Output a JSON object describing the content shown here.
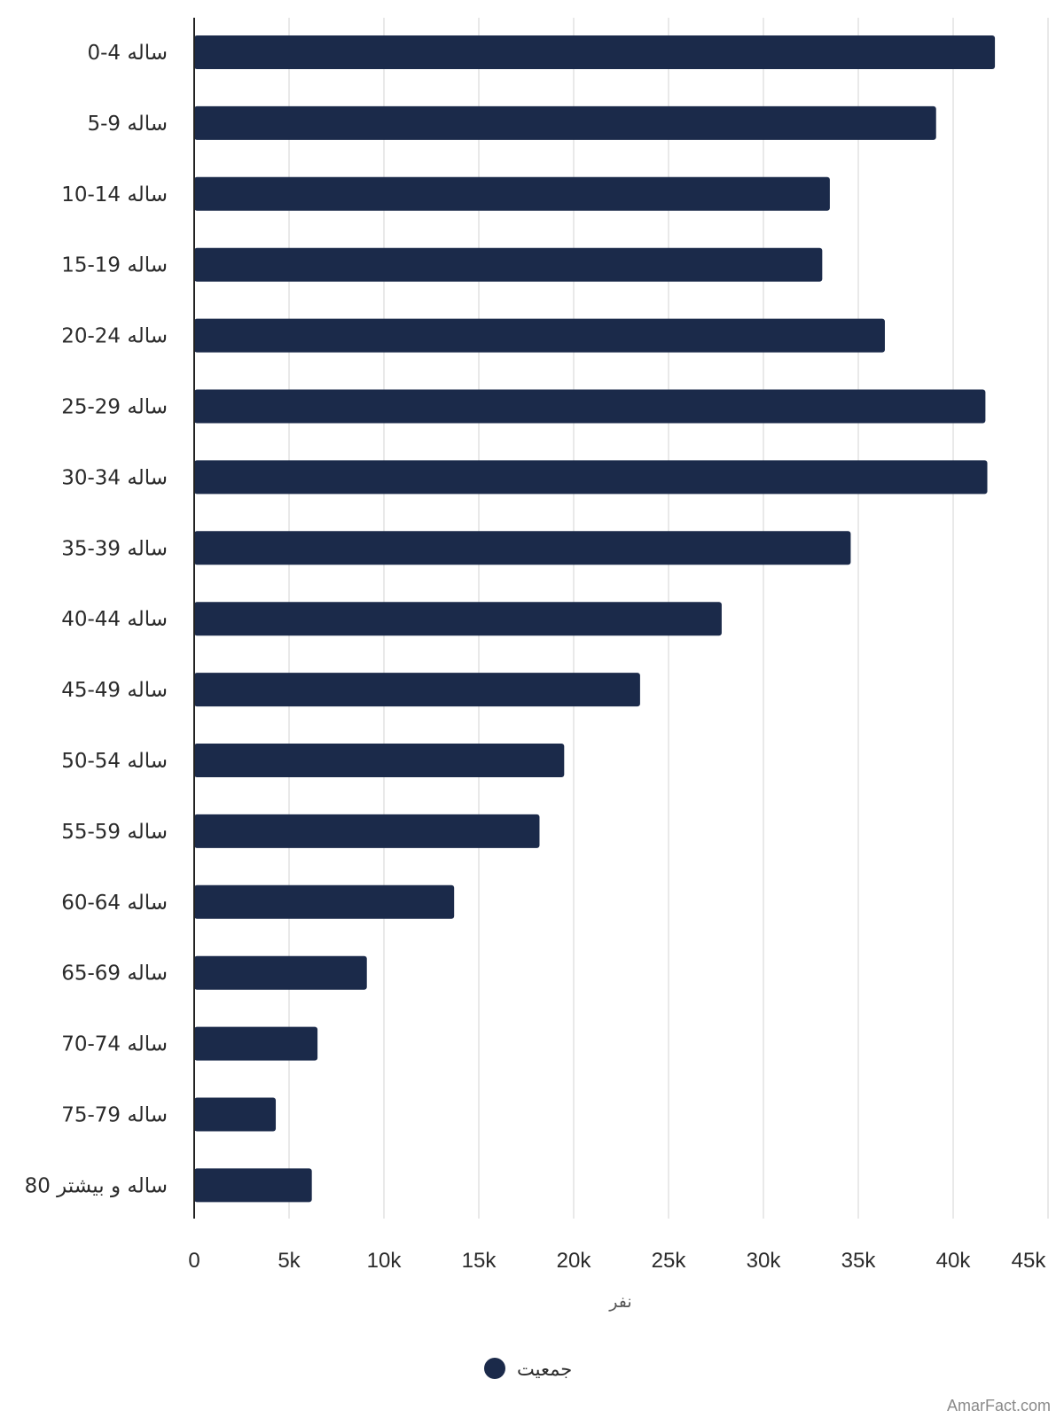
{
  "chart_data": {
    "type": "bar",
    "orientation": "horizontal",
    "categories": [
      "0-4 ساله",
      "5-9 ساله",
      "10-14 ساله",
      "15-19 ساله",
      "20-24 ساله",
      "25-29 ساله",
      "30-34 ساله",
      "35-39 ساله",
      "40-44 ساله",
      "45-49 ساله",
      "50-54 ساله",
      "55-59 ساله",
      "60-64 ساله",
      "65-69 ساله",
      "70-74 ساله",
      "75-79 ساله",
      "80 ساله و بیشتر"
    ],
    "series": [
      {
        "name": "جمعیت",
        "color": "#1b2a4a",
        "values": [
          42200,
          39100,
          33500,
          33100,
          36400,
          41700,
          41800,
          34600,
          27800,
          23500,
          19500,
          18200,
          13700,
          9100,
          6500,
          4300,
          6200
        ]
      }
    ],
    "xlabel": "نفر",
    "ylabel": "",
    "xlim": [
      0,
      45000
    ],
    "x_ticks": [
      0,
      5000,
      10000,
      15000,
      20000,
      25000,
      30000,
      35000,
      40000,
      45000
    ],
    "x_tick_labels": [
      "0",
      "5k",
      "10k",
      "15k",
      "20k",
      "25k",
      "30k",
      "35k",
      "40k",
      "45k"
    ],
    "grid": true,
    "legend_position": "bottom-center"
  },
  "colors": {
    "bar": "#1b2a4a",
    "grid": "#e2e2e2",
    "axis": "#222222"
  },
  "watermark": "AmarFact.com"
}
